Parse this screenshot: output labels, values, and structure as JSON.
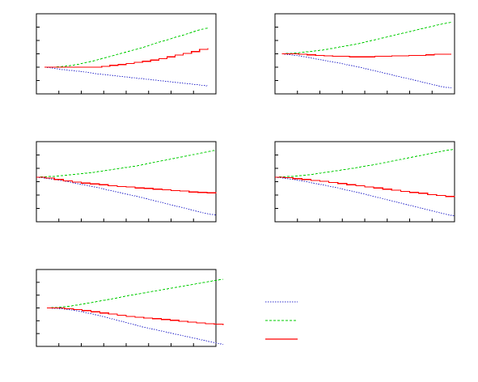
{
  "chart_data": [
    {
      "type": "line",
      "x": [
        0,
        1,
        2,
        3,
        4,
        5,
        6,
        7,
        8,
        9,
        10,
        11,
        12,
        13,
        14,
        15,
        16,
        17,
        18,
        19,
        20
      ],
      "xlim": [
        -1,
        21
      ],
      "ylim": [
        -0.6,
        1.2
      ],
      "grid": false,
      "series": [
        {
          "color": "#3333cc",
          "dash": "dotted",
          "step": false,
          "values": [
            0,
            -0.02,
            -0.05,
            -0.07,
            -0.09,
            -0.11,
            -0.14,
            -0.16,
            -0.18,
            -0.2,
            -0.22,
            -0.24,
            -0.26,
            -0.28,
            -0.3,
            -0.32,
            -0.34,
            -0.36,
            -0.38,
            -0.4,
            -0.42
          ]
        },
        {
          "color": "#00cc00",
          "dash": "dashed",
          "step": false,
          "values": [
            0,
            0,
            0.01,
            0.03,
            0.06,
            0.1,
            0.14,
            0.19,
            0.24,
            0.29,
            0.34,
            0.39,
            0.44,
            0.5,
            0.56,
            0.61,
            0.67,
            0.72,
            0.78,
            0.84,
            0.88
          ]
        },
        {
          "color": "#ff0000",
          "dash": "solid",
          "step": true,
          "values": [
            0,
            0,
            0,
            0,
            0,
            0,
            0,
            0.02,
            0.04,
            0.06,
            0.08,
            0.11,
            0.13,
            0.16,
            0.19,
            0.23,
            0.27,
            0.31,
            0.35,
            0.4,
            0.43
          ]
        }
      ]
    },
    {
      "type": "line",
      "x": [
        0,
        1,
        2,
        3,
        4,
        5,
        6,
        7,
        8,
        9,
        10,
        11,
        12,
        13,
        14,
        15,
        16,
        17,
        18,
        19,
        20
      ],
      "xlim": [
        -0.8,
        20.4
      ],
      "ylim": [
        -0.8,
        0.8
      ],
      "grid": false,
      "series": [
        {
          "color": "#3333cc",
          "dash": "dotted",
          "step": false,
          "values": [
            0,
            -0.02,
            -0.04,
            -0.07,
            -0.1,
            -0.13,
            -0.16,
            -0.19,
            -0.23,
            -0.26,
            -0.3,
            -0.34,
            -0.38,
            -0.42,
            -0.46,
            -0.5,
            -0.54,
            -0.58,
            -0.62,
            -0.66,
            -0.68
          ]
        },
        {
          "color": "#00cc00",
          "dash": "dashed",
          "step": false,
          "values": [
            0,
            0.01,
            0.02,
            0.04,
            0.06,
            0.08,
            0.11,
            0.14,
            0.17,
            0.2,
            0.24,
            0.28,
            0.32,
            0.36,
            0.4,
            0.44,
            0.48,
            0.52,
            0.56,
            0.6,
            0.63
          ]
        },
        {
          "color": "#ff0000",
          "dash": "solid",
          "step": true,
          "values": [
            0,
            0,
            -0.01,
            -0.02,
            -0.03,
            -0.04,
            -0.05,
            -0.05,
            -0.06,
            -0.06,
            -0.06,
            -0.05,
            -0.05,
            -0.04,
            -0.04,
            -0.03,
            -0.03,
            -0.02,
            -0.01,
            -0.01,
            -0.01
          ]
        }
      ]
    },
    {
      "type": "line",
      "x": [
        0,
        1,
        2,
        3,
        4,
        5,
        6,
        7,
        8,
        9,
        10,
        11,
        12,
        13,
        14,
        15,
        16,
        17,
        18,
        19,
        20
      ],
      "xlim": [
        0,
        20
      ],
      "ylim": [
        -1,
        0.8
      ],
      "grid": false,
      "series": [
        {
          "color": "#3333cc",
          "dash": "dotted",
          "step": false,
          "values": [
            0,
            -0.02,
            -0.05,
            -0.08,
            -0.12,
            -0.16,
            -0.2,
            -0.24,
            -0.29,
            -0.33,
            -0.38,
            -0.42,
            -0.47,
            -0.52,
            -0.57,
            -0.62,
            -0.67,
            -0.72,
            -0.77,
            -0.82,
            -0.85
          ]
        },
        {
          "color": "#00cc00",
          "dash": "dashed",
          "step": false,
          "values": [
            0,
            0.01,
            0.02,
            0.04,
            0.06,
            0.08,
            0.1,
            0.13,
            0.16,
            0.19,
            0.22,
            0.25,
            0.29,
            0.33,
            0.37,
            0.41,
            0.45,
            0.49,
            0.53,
            0.57,
            0.61
          ]
        },
        {
          "color": "#ff0000",
          "dash": "solid",
          "step": true,
          "values": [
            0,
            -0.02,
            -0.05,
            -0.08,
            -0.11,
            -0.13,
            -0.15,
            -0.17,
            -0.19,
            -0.21,
            -0.22,
            -0.24,
            -0.25,
            -0.27,
            -0.28,
            -0.3,
            -0.31,
            -0.33,
            -0.34,
            -0.35,
            -0.36
          ]
        }
      ]
    },
    {
      "type": "line",
      "x": [
        0,
        1,
        2,
        3,
        4,
        5,
        6,
        7,
        8,
        9,
        10,
        11,
        12,
        13,
        14,
        15,
        16,
        17,
        18,
        19,
        20
      ],
      "xlim": [
        0,
        20
      ],
      "ylim": [
        -1,
        0.8
      ],
      "grid": false,
      "series": [
        {
          "color": "#3333cc",
          "dash": "dotted",
          "step": false,
          "values": [
            0,
            -0.02,
            -0.05,
            -0.08,
            -0.12,
            -0.16,
            -0.2,
            -0.24,
            -0.29,
            -0.33,
            -0.38,
            -0.43,
            -0.48,
            -0.53,
            -0.58,
            -0.63,
            -0.68,
            -0.73,
            -0.78,
            -0.83,
            -0.87
          ]
        },
        {
          "color": "#00cc00",
          "dash": "dashed",
          "step": false,
          "values": [
            0,
            0.01,
            0.02,
            0.04,
            0.06,
            0.09,
            0.12,
            0.15,
            0.18,
            0.21,
            0.25,
            0.28,
            0.32,
            0.36,
            0.4,
            0.44,
            0.48,
            0.52,
            0.56,
            0.6,
            0.63
          ]
        },
        {
          "color": "#ff0000",
          "dash": "solid",
          "step": true,
          "values": [
            0,
            -0.01,
            -0.03,
            -0.05,
            -0.07,
            -0.09,
            -0.12,
            -0.14,
            -0.17,
            -0.19,
            -0.22,
            -0.24,
            -0.27,
            -0.29,
            -0.32,
            -0.34,
            -0.36,
            -0.39,
            -0.41,
            -0.43,
            -0.44
          ]
        }
      ]
    },
    {
      "type": "line",
      "x": [
        0,
        1,
        2,
        3,
        4,
        5,
        6,
        7,
        8,
        9,
        10,
        11,
        12,
        13,
        14,
        15,
        16,
        17,
        18,
        19,
        20
      ],
      "xlim": [
        -1.2,
        19.2
      ],
      "ylim": [
        -1,
        1
      ],
      "grid": false,
      "series": [
        {
          "color": "#3333cc",
          "dash": "dotted",
          "step": false,
          "values": [
            0,
            -0.01,
            -0.03,
            -0.06,
            -0.1,
            -0.15,
            -0.2,
            -0.26,
            -0.32,
            -0.38,
            -0.44,
            -0.5,
            -0.55,
            -0.6,
            -0.65,
            -0.7,
            -0.75,
            -0.8,
            -0.85,
            -0.9,
            -0.95
          ]
        },
        {
          "color": "#00cc00",
          "dash": "dashed",
          "step": false,
          "values": [
            0,
            0.01,
            0.03,
            0.06,
            0.1,
            0.14,
            0.18,
            0.22,
            0.26,
            0.31,
            0.35,
            0.39,
            0.43,
            0.47,
            0.51,
            0.55,
            0.59,
            0.63,
            0.67,
            0.71,
            0.75
          ]
        },
        {
          "color": "#ff0000",
          "dash": "solid",
          "step": true,
          "values": [
            0,
            0,
            -0.02,
            -0.04,
            -0.07,
            -0.1,
            -0.13,
            -0.16,
            -0.19,
            -0.22,
            -0.24,
            -0.26,
            -0.28,
            -0.3,
            -0.32,
            -0.35,
            -0.37,
            -0.39,
            -0.41,
            -0.42,
            -0.44
          ]
        }
      ]
    }
  ],
  "legend": {
    "placement": "lower-right",
    "entries": [
      {
        "color": "#3333cc",
        "dash": "dotted"
      },
      {
        "color": "#00cc00",
        "dash": "dashed"
      },
      {
        "color": "#ff0000",
        "dash": "solid"
      }
    ]
  }
}
